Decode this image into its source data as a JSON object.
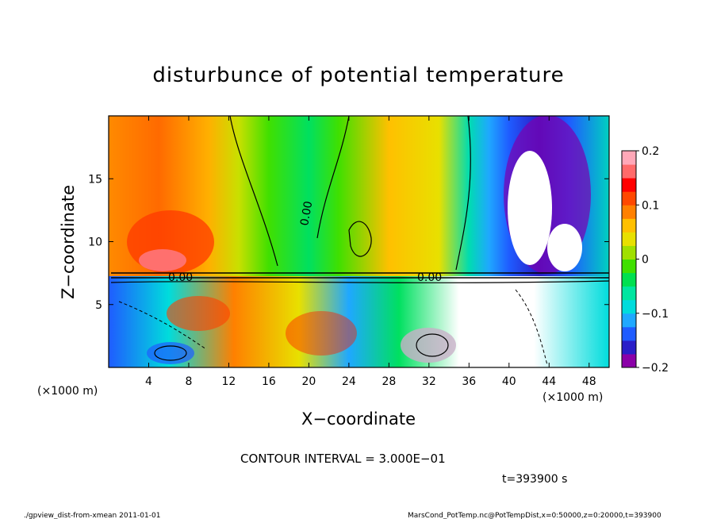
{
  "chart_data": {
    "type": "heatmap",
    "title": "disturbunce of potential temperature",
    "xlabel": "X−coordinate",
    "ylabel": "Z−coordinate",
    "x_units": "(×1000 m)",
    "y_units": "(×1000 m)",
    "xlim": [
      0,
      50
    ],
    "ylim": [
      0,
      20
    ],
    "x_ticks": [
      "4",
      "8",
      "12",
      "16",
      "20",
      "24",
      "28",
      "32",
      "36",
      "40",
      "44",
      "48"
    ],
    "x_tick_values": [
      4,
      8,
      12,
      16,
      20,
      24,
      28,
      32,
      36,
      40,
      44,
      48
    ],
    "y_ticks": [
      "5",
      "10",
      "15"
    ],
    "y_tick_values": [
      5,
      10,
      15
    ],
    "colorbar": {
      "ticks": [
        "0.2",
        "0.1",
        "0",
        "−0.1",
        "−0.2"
      ],
      "tick_values": [
        0.2,
        0.1,
        0,
        -0.1,
        -0.2
      ],
      "range": [
        -0.2,
        0.2
      ],
      "colors": [
        "#8b00a8",
        "#2a1ec8",
        "#1f5cff",
        "#1fa8ff",
        "#00dcdc",
        "#00e6a0",
        "#00e050",
        "#40e000",
        "#a0e000",
        "#e8e000",
        "#ffc000",
        "#ff8000",
        "#ff4800",
        "#ff0000",
        "#ff6a6a",
        "#ffa8b8"
      ]
    },
    "contour_labels": [
      "0.00",
      "0.00",
      "0.00",
      "0.00",
      "0.00",
      "0.00"
    ],
    "contour_interval_label": "CONTOUR INTERVAL = 3.000E−01",
    "time_label": "t=393900 s",
    "grid": false
  },
  "footer": {
    "left": "./gpview_dist-from-xmean  2011-01-01",
    "right": "MarsCond_PotTemp.nc@PotTempDist,x=0:50000,z=0:20000,t=393900"
  }
}
